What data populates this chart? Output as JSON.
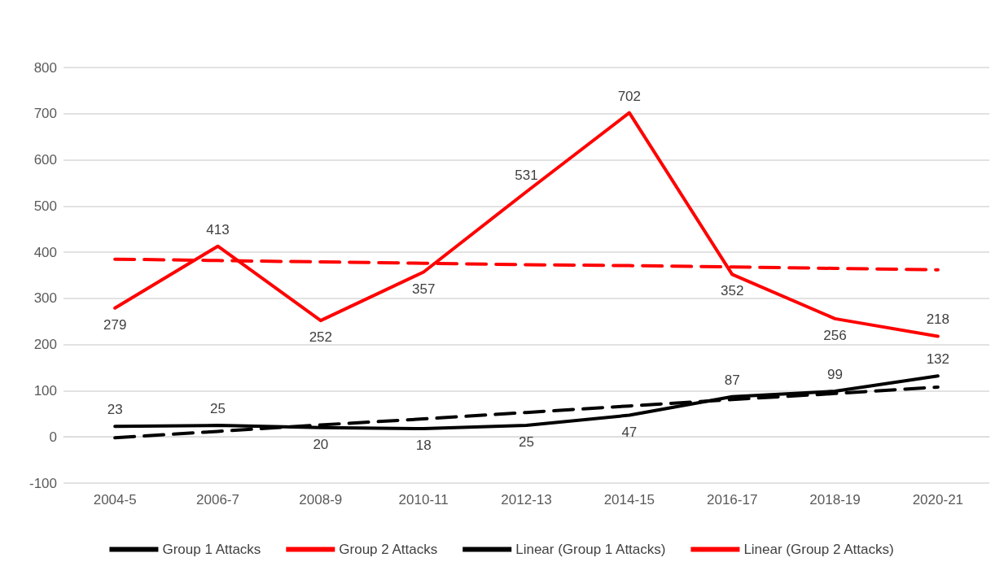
{
  "chart_data": {
    "type": "line",
    "categories": [
      "2004-5",
      "2006-7",
      "2008-9",
      "2010-11",
      "2012-13",
      "2014-15",
      "2016-17",
      "2018-19",
      "2020-21"
    ],
    "series": [
      {
        "name": "Group 1 Attacks",
        "color": "#000000",
        "line_style": "solid",
        "values": [
          23,
          25,
          20,
          18,
          25,
          47,
          87,
          99,
          132
        ],
        "value_labels": [
          "23",
          "25",
          "20",
          "18",
          "25",
          "47",
          "87",
          "99",
          "132"
        ]
      },
      {
        "name": "Group 2 Attacks",
        "color": "#ff0000",
        "line_style": "solid",
        "values": [
          279,
          413,
          252,
          357,
          531,
          702,
          352,
          256,
          218
        ],
        "value_labels": [
          "279",
          "413",
          "252",
          "357",
          "531",
          "702",
          "352",
          "256",
          "218"
        ]
      },
      {
        "name": "Linear (Group 1 Attacks)",
        "color": "#000000",
        "line_style": "dashed",
        "values": [
          -2,
          12,
          26,
          39,
          53,
          67,
          81,
          94,
          108
        ]
      },
      {
        "name": "Linear (Group 2 Attacks)",
        "color": "#ff0000",
        "line_style": "dashed",
        "values": [
          385,
          382,
          379,
          376,
          373,
          371,
          368,
          365,
          362
        ]
      }
    ],
    "ylim": [
      -100,
      800
    ],
    "yticks": [
      -100,
      0,
      100,
      200,
      300,
      400,
      500,
      600,
      700,
      800
    ],
    "grid": "y",
    "legend": "bottom",
    "marker": "none"
  }
}
